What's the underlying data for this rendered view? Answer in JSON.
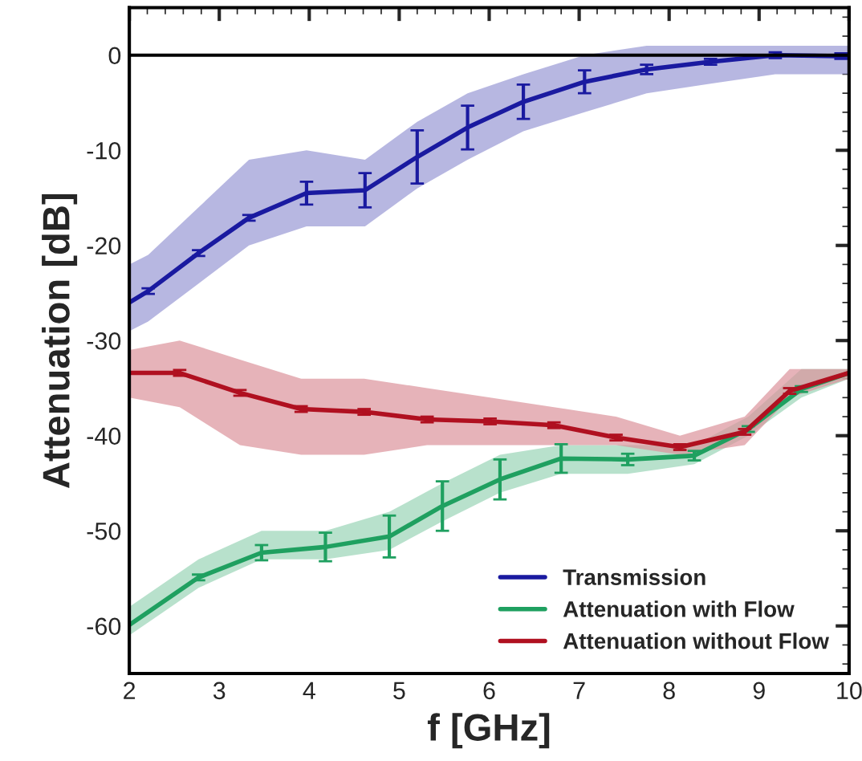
{
  "chart_data": {
    "type": "line",
    "xlabel": "f [GHz]",
    "ylabel": "Attenuation [dB]",
    "xlim": [
      2,
      10
    ],
    "xticks": [
      2,
      3,
      4,
      5,
      6,
      7,
      8,
      9,
      10
    ],
    "ylim": [
      -65,
      5
    ],
    "yticks": [
      -60,
      -50,
      -40,
      -30,
      -20,
      -10,
      0
    ],
    "grid": false,
    "legend": "bottom right",
    "marker": "none",
    "line_style": "solid",
    "ref_lines": [
      {
        "axis": "y",
        "value": 0,
        "color": "#000000",
        "line_style": "solid"
      }
    ],
    "series": [
      {
        "name": "Transmission",
        "color": "#1a1aa0",
        "x": [
          2.0,
          2.21,
          2.77,
          3.33,
          3.97,
          4.62,
          5.2,
          5.76,
          6.38,
          7.06,
          7.75,
          8.46,
          9.18,
          9.91,
          10.0
        ],
        "values": [
          -26,
          -24.8,
          -20.8,
          -17.1,
          -14.5,
          -14.2,
          -10.7,
          -7.6,
          -4.9,
          -2.8,
          -1.5,
          -0.7,
          0,
          -0.1,
          -0.1
        ],
        "errors": [
          null,
          0.3,
          0.3,
          0.3,
          1.2,
          1.8,
          2.8,
          2.3,
          1.8,
          1.2,
          0.5,
          0.3,
          0.3,
          0.3,
          null
        ],
        "lower": [
          -29,
          -28,
          -24,
          -20,
          -18,
          -18,
          -14,
          -11,
          -8,
          -6,
          -4,
          -3,
          -2,
          -2,
          -2
        ],
        "upper": [
          -22,
          -21,
          -16,
          -11,
          -10,
          -11,
          -7,
          -4,
          -2,
          0,
          1,
          1,
          1,
          1,
          1
        ]
      },
      {
        "name": "Attenuation with Flow",
        "color": "#1fa060",
        "x": [
          2.0,
          2.77,
          3.47,
          4.18,
          4.89,
          5.48,
          6.12,
          6.8,
          7.54,
          8.28,
          8.88,
          9.47,
          10.0
        ],
        "values": [
          -59.9,
          -54.9,
          -52.3,
          -51.7,
          -50.6,
          -47.4,
          -44.6,
          -42.4,
          -42.5,
          -42.1,
          -39.3,
          -35.1,
          -33.4
        ],
        "errors": [
          null,
          0.3,
          0.8,
          1.5,
          2.2,
          2.6,
          2.1,
          1.5,
          0.6,
          0.5,
          0.3,
          0.3,
          null
        ],
        "lower": [
          -61,
          -56,
          -53,
          -53,
          -52,
          -49,
          -46,
          -44,
          -44,
          -43,
          -40,
          -36,
          -34
        ],
        "upper": [
          -58,
          -53,
          -50,
          -50,
          -48,
          -45,
          -42,
          -41,
          -41,
          -41,
          -38,
          -33,
          -33
        ]
      },
      {
        "name": "Attenuation without Flow",
        "color": "#b01020",
        "x": [
          2.0,
          2.56,
          3.23,
          3.91,
          4.61,
          5.31,
          6.01,
          6.72,
          7.41,
          8.12,
          8.84,
          9.34,
          10.0
        ],
        "values": [
          -33.4,
          -33.4,
          -35.5,
          -37.2,
          -37.5,
          -38.3,
          -38.5,
          -38.9,
          -40.2,
          -41.2,
          -39.6,
          -35.3,
          -33.4
        ],
        "errors": [
          null,
          0.3,
          0.3,
          0.3,
          0.3,
          0.3,
          0.3,
          0.3,
          0.3,
          0.3,
          0.3,
          0.3,
          null
        ],
        "lower": [
          -36,
          -37,
          -41,
          -42,
          -42,
          -41,
          -41,
          -41,
          -41,
          -42,
          -41,
          -36,
          -34
        ],
        "upper": [
          -31,
          -30,
          -32,
          -34,
          -34,
          -35,
          -36,
          -37,
          -38,
          -40,
          -38,
          -33,
          -33
        ]
      }
    ]
  }
}
